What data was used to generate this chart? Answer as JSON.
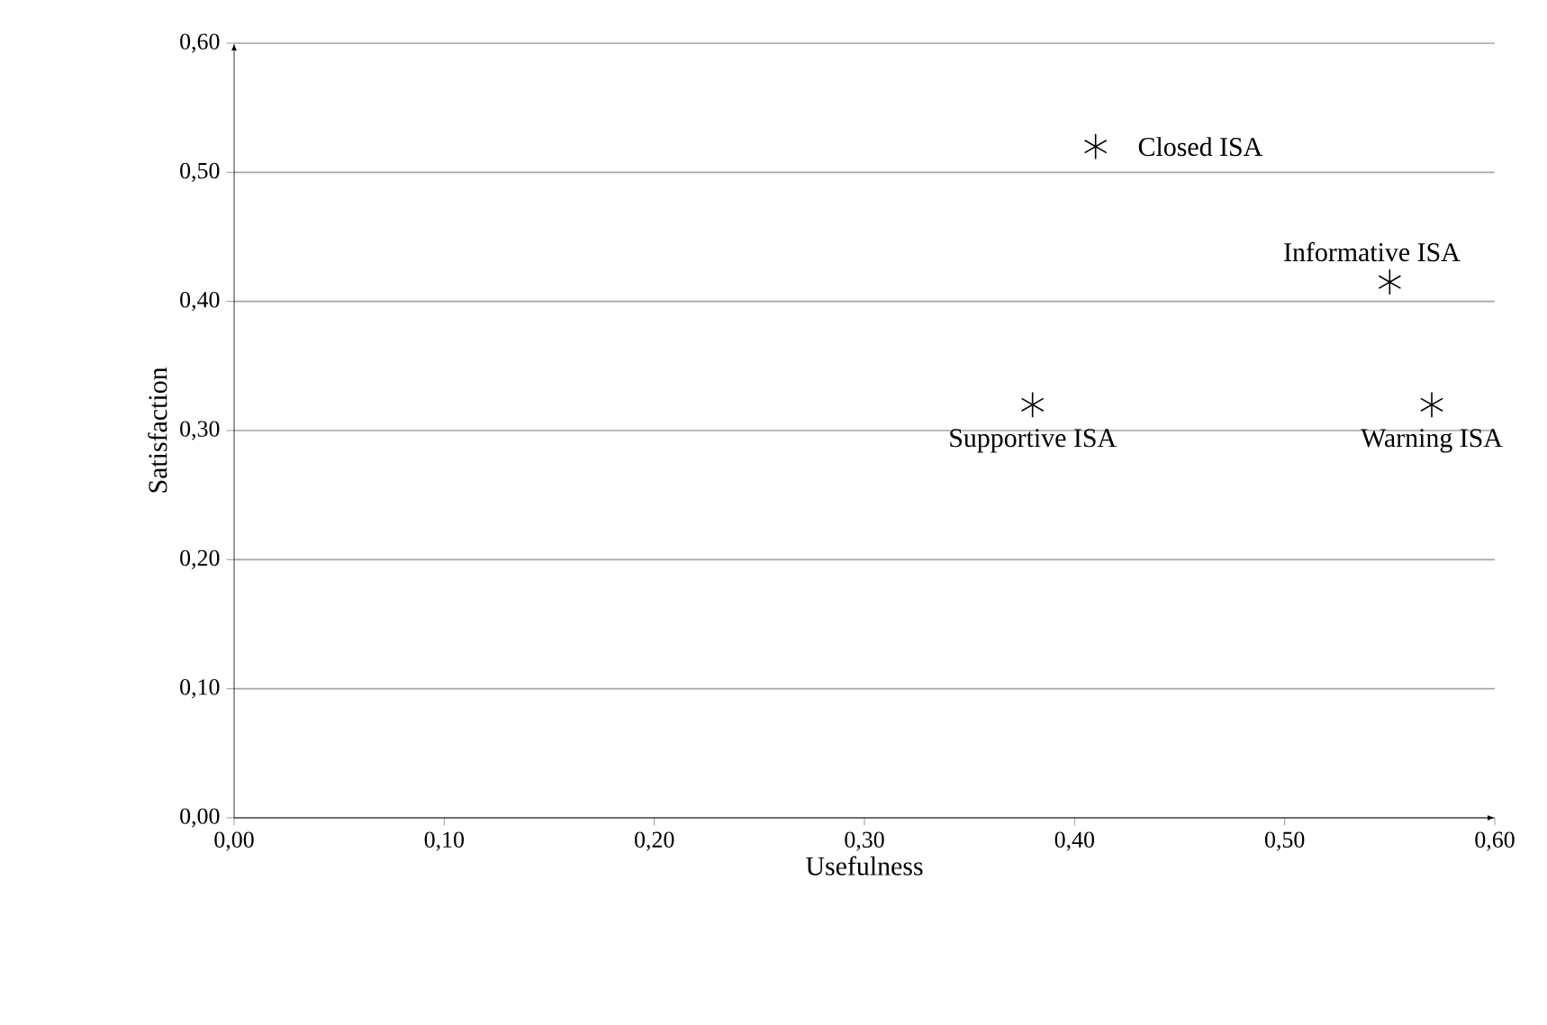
{
  "chart_data": {
    "type": "scatter",
    "xlabel": "Usefulness",
    "ylabel": "Satisfaction",
    "x": [
      0.41,
      0.55,
      0.38,
      0.57
    ],
    "values": [
      0.52,
      0.415,
      0.32,
      0.32
    ],
    "color": "#000000",
    "marker": "cross",
    "grid": "y",
    "xlim": [
      0,
      0.6
    ],
    "ylim": [
      0,
      0.6
    ],
    "xticks": [
      {
        "value": 0,
        "label": "0,00"
      },
      {
        "value": 0.1,
        "label": "0,10"
      },
      {
        "value": 0.2,
        "label": "0,20"
      },
      {
        "value": 0.3,
        "label": "0,30"
      },
      {
        "value": 0.4,
        "label": "0,40"
      },
      {
        "value": 0.5,
        "label": "0,50"
      },
      {
        "value": 0.6,
        "label": "0,60"
      }
    ],
    "yticks": [
      {
        "value": 0,
        "label": "0,00"
      },
      {
        "value": 0.1,
        "label": "0,10"
      },
      {
        "value": 0.2,
        "label": "0,20"
      },
      {
        "value": 0.3,
        "label": "0,30"
      },
      {
        "value": 0.4,
        "label": "0,40"
      },
      {
        "value": 0.5,
        "label": "0,50"
      },
      {
        "value": 0.6,
        "label": "0,60"
      }
    ],
    "annotations": [
      {
        "text": "Closed ISA",
        "x": 0.41,
        "y": 0.52
      },
      {
        "text": "Informative ISA",
        "x": 0.55,
        "y": 0.415
      },
      {
        "text": "Supportive ISA",
        "x": 0.38,
        "y": 0.32
      },
      {
        "text": "Warning ISA",
        "x": 0.57,
        "y": 0.32
      }
    ]
  }
}
